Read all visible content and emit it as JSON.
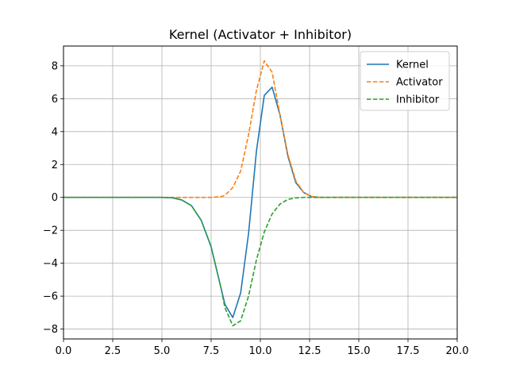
{
  "chart_data": {
    "type": "line",
    "title": "Kernel (Activator + Inhibitor)",
    "xlabel": "",
    "ylabel": "",
    "xlim": [
      0,
      20
    ],
    "ylim": [
      -8.6,
      9.2
    ],
    "x_ticks": [
      0,
      2.5,
      5,
      7.5,
      10,
      12.5,
      15,
      17.5,
      20
    ],
    "x_tick_labels": [
      "0.0",
      "2.5",
      "5.0",
      "7.5",
      "10.0",
      "12.5",
      "15.0",
      "17.5",
      "20.0"
    ],
    "y_ticks": [
      -8,
      -6,
      -4,
      -2,
      0,
      2,
      4,
      6,
      8
    ],
    "y_tick_labels": [
      "−8",
      "−6",
      "−4",
      "−2",
      "0",
      "2",
      "4",
      "6",
      "8"
    ],
    "grid": true,
    "legend_position": "top-right",
    "series": [
      {
        "name": "Kernel",
        "color": "#1f77b4",
        "style": "solid",
        "points": [
          [
            0,
            0
          ],
          [
            5,
            0
          ],
          [
            5.5,
            -0.02
          ],
          [
            6.0,
            -0.15
          ],
          [
            6.5,
            -0.5
          ],
          [
            7.0,
            -1.4
          ],
          [
            7.5,
            -3.0
          ],
          [
            8.0,
            -5.5
          ],
          [
            8.2,
            -6.5
          ],
          [
            8.6,
            -7.3
          ],
          [
            9.0,
            -5.8
          ],
          [
            9.4,
            -2.2
          ],
          [
            9.8,
            2.8
          ],
          [
            10.2,
            6.2
          ],
          [
            10.6,
            6.7
          ],
          [
            11.0,
            5.0
          ],
          [
            11.4,
            2.5
          ],
          [
            11.8,
            0.9
          ],
          [
            12.2,
            0.3
          ],
          [
            12.6,
            0.05
          ],
          [
            13,
            0
          ],
          [
            20,
            0
          ]
        ]
      },
      {
        "name": "Activator",
        "color": "#ff7f0e",
        "style": "dashed",
        "points": [
          [
            0,
            0
          ],
          [
            7.5,
            0
          ],
          [
            8.0,
            0.05
          ],
          [
            8.2,
            0.12
          ],
          [
            8.6,
            0.6
          ],
          [
            9.0,
            1.6
          ],
          [
            9.4,
            3.8
          ],
          [
            9.8,
            6.5
          ],
          [
            10.2,
            8.3
          ],
          [
            10.6,
            7.6
          ],
          [
            11.0,
            5.0
          ],
          [
            11.4,
            2.6
          ],
          [
            11.8,
            1.0
          ],
          [
            12.2,
            0.3
          ],
          [
            12.6,
            0.05
          ],
          [
            13,
            0
          ],
          [
            20,
            0
          ]
        ]
      },
      {
        "name": "Inhibitor",
        "color": "#2ca02c",
        "style": "dashed",
        "points": [
          [
            0,
            0
          ],
          [
            5,
            0
          ],
          [
            5.5,
            -0.02
          ],
          [
            6.0,
            -0.15
          ],
          [
            6.5,
            -0.5
          ],
          [
            7.0,
            -1.4
          ],
          [
            7.5,
            -3.0
          ],
          [
            8.0,
            -5.5
          ],
          [
            8.2,
            -6.7
          ],
          [
            8.6,
            -7.8
          ],
          [
            9.0,
            -7.5
          ],
          [
            9.4,
            -6.0
          ],
          [
            9.8,
            -3.8
          ],
          [
            10.2,
            -2.1
          ],
          [
            10.6,
            -1.0
          ],
          [
            11.0,
            -0.4
          ],
          [
            11.4,
            -0.12
          ],
          [
            11.8,
            -0.03
          ],
          [
            12.2,
            0
          ],
          [
            20,
            0
          ]
        ]
      }
    ]
  }
}
